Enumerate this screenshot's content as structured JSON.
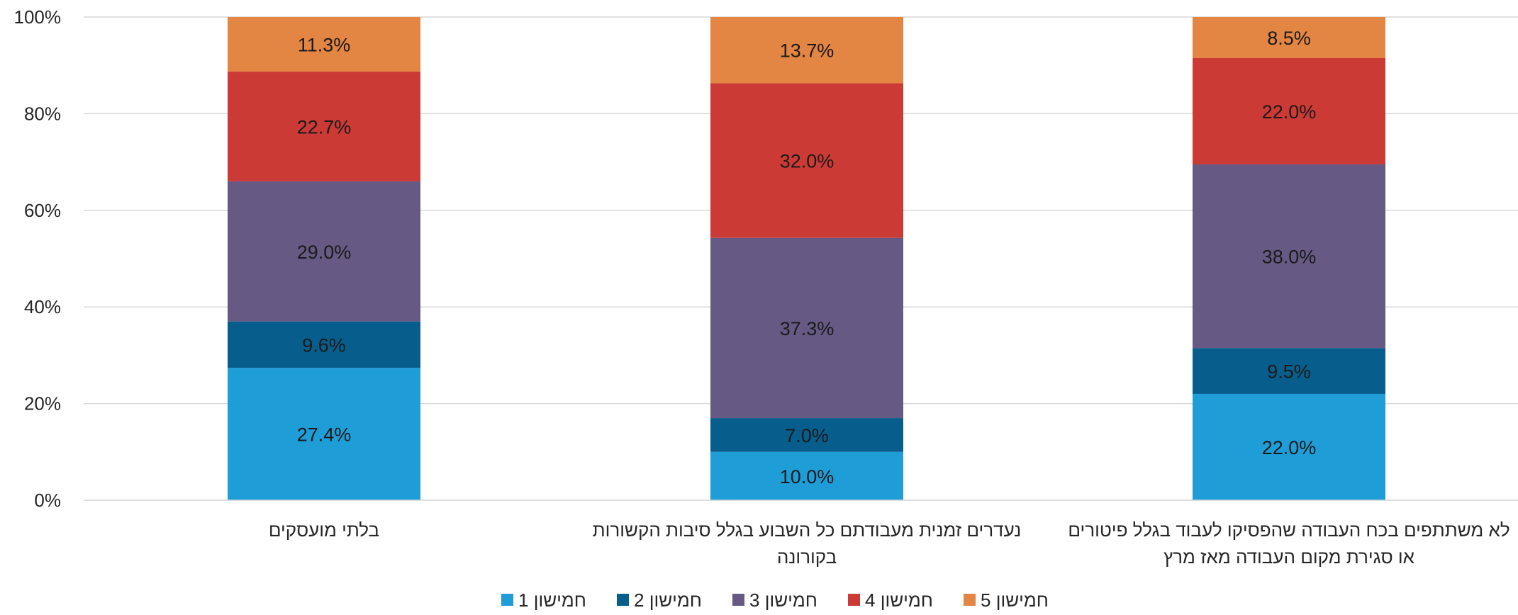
{
  "chart_data": {
    "type": "bar",
    "stacked": true,
    "categories": [
      [
        "בלתי מועסקים"
      ],
      [
        "נעדרים זמנית מעבודתם כל השבוע בגלל סיבות הקשורות",
        "בקורונה"
      ],
      [
        "לא משתתפים בכח העבודה שהפסיקו לעבוד בגלל פיטורים",
        "או סגירת מקום העבודה מאז מרץ"
      ]
    ],
    "series": [
      {
        "name": "חמישון 1",
        "color": "#1f9dd6",
        "values": [
          27.4,
          10.0,
          22.0
        ],
        "labels": [
          "27.4%",
          "10.0%",
          "22.0%"
        ]
      },
      {
        "name": "חמישון 2",
        "color": "#075d8b",
        "values": [
          9.6,
          7.0,
          9.5
        ],
        "labels": [
          "9.6%",
          "7.0%",
          "9.5%"
        ]
      },
      {
        "name": "חמישון 3",
        "color": "#665a85",
        "values": [
          29.0,
          37.3,
          38.0
        ],
        "labels": [
          "29.0%",
          "37.3%",
          "38.0%"
        ]
      },
      {
        "name": "חמישון 4",
        "color": "#cc3a35",
        "values": [
          22.7,
          32.0,
          22.0
        ],
        "labels": [
          "22.7%",
          "32.0%",
          "22.0%"
        ]
      },
      {
        "name": "חמישון 5",
        "color": "#e38543",
        "values": [
          11.3,
          13.7,
          8.5
        ],
        "labels": [
          "11.3%",
          "13.7%",
          "8.5%"
        ]
      }
    ],
    "y_ticks": [
      "0%",
      "20%",
      "40%",
      "60%",
      "80%",
      "100%"
    ],
    "ylim": [
      0,
      100
    ],
    "grid": true,
    "legend_position": "bottom"
  }
}
